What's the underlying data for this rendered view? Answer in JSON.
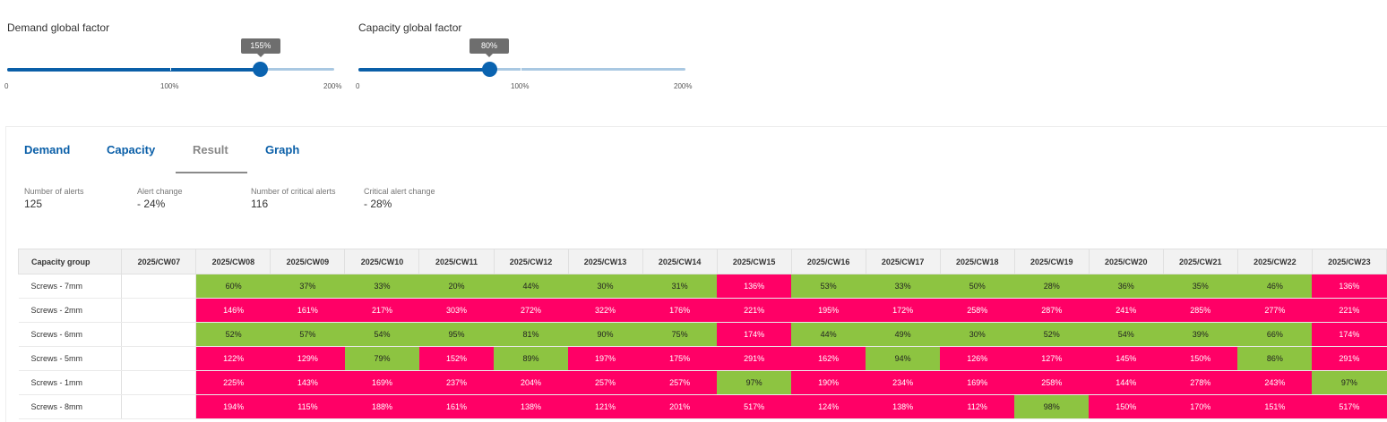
{
  "sliders": {
    "demand": {
      "label": "Demand global factor",
      "value": 155,
      "value_text": "155%",
      "min_label": "0",
      "mid_label": "100%",
      "max_label": "200%"
    },
    "capacity": {
      "label": "Capacity global factor",
      "value": 80,
      "value_text": "80%",
      "min_label": "0",
      "mid_label": "100%",
      "max_label": "200%"
    }
  },
  "tabs": [
    {
      "label": "Demand",
      "active": false
    },
    {
      "label": "Capacity",
      "active": false
    },
    {
      "label": "Result",
      "active": true
    },
    {
      "label": "Graph",
      "active": false
    }
  ],
  "kpis": [
    {
      "label": "Number of alerts",
      "value": "125"
    },
    {
      "label": "Alert change",
      "value": "- 24%"
    },
    {
      "label": "Number of critical alerts",
      "value": "116"
    },
    {
      "label": "Critical alert change",
      "value": "- 28%"
    }
  ],
  "colors": {
    "ok": "#8dc441",
    "critical": "#ff0066",
    "accent": "#0a5fa8"
  },
  "table": {
    "first_header": "Capacity group",
    "weeks": [
      "2025/CW07",
      "2025/CW08",
      "2025/CW09",
      "2025/CW10",
      "2025/CW11",
      "2025/CW12",
      "2025/CW13",
      "2025/CW14",
      "2025/CW15",
      "2025/CW16",
      "2025/CW17",
      "2025/CW18",
      "2025/CW19",
      "2025/CW20",
      "2025/CW21",
      "2025/CW22",
      "2025/CW23"
    ],
    "rows": [
      {
        "group": "Screws - 7mm",
        "cells": [
          "",
          "60%",
          "37%",
          "33%",
          "20%",
          "44%",
          "30%",
          "31%",
          "136%",
          "53%",
          "33%",
          "50%",
          "28%",
          "36%",
          "35%",
          "46%",
          "136%"
        ],
        "status": [
          "",
          "ok",
          "ok",
          "ok",
          "ok",
          "ok",
          "ok",
          "ok",
          "crit",
          "ok",
          "ok",
          "ok",
          "ok",
          "ok",
          "ok",
          "ok",
          "crit"
        ]
      },
      {
        "group": "Screws - 2mm",
        "cells": [
          "",
          "146%",
          "161%",
          "217%",
          "303%",
          "272%",
          "322%",
          "176%",
          "221%",
          "195%",
          "172%",
          "258%",
          "287%",
          "241%",
          "285%",
          "277%",
          "221%"
        ],
        "status": [
          "",
          "crit",
          "crit",
          "crit",
          "crit",
          "crit",
          "crit",
          "crit",
          "crit",
          "crit",
          "crit",
          "crit",
          "crit",
          "crit",
          "crit",
          "crit",
          "crit"
        ]
      },
      {
        "group": "Screws - 6mm",
        "cells": [
          "",
          "52%",
          "57%",
          "54%",
          "95%",
          "81%",
          "90%",
          "75%",
          "174%",
          "44%",
          "49%",
          "30%",
          "52%",
          "54%",
          "39%",
          "66%",
          "174%"
        ],
        "status": [
          "",
          "ok",
          "ok",
          "ok",
          "ok",
          "ok",
          "ok",
          "ok",
          "crit",
          "ok",
          "ok",
          "ok",
          "ok",
          "ok",
          "ok",
          "ok",
          "crit"
        ]
      },
      {
        "group": "Screws - 5mm",
        "cells": [
          "",
          "122%",
          "129%",
          "79%",
          "152%",
          "89%",
          "197%",
          "175%",
          "291%",
          "162%",
          "94%",
          "126%",
          "127%",
          "145%",
          "150%",
          "86%",
          "291%"
        ],
        "status": [
          "",
          "crit",
          "crit",
          "ok",
          "crit",
          "ok",
          "crit",
          "crit",
          "crit",
          "crit",
          "ok",
          "crit",
          "crit",
          "crit",
          "crit",
          "ok",
          "crit"
        ]
      },
      {
        "group": "Screws - 1mm",
        "cells": [
          "",
          "225%",
          "143%",
          "169%",
          "237%",
          "204%",
          "257%",
          "257%",
          "97%",
          "190%",
          "234%",
          "169%",
          "258%",
          "144%",
          "278%",
          "243%",
          "97%"
        ],
        "status": [
          "",
          "crit",
          "crit",
          "crit",
          "crit",
          "crit",
          "crit",
          "crit",
          "ok",
          "crit",
          "crit",
          "crit",
          "crit",
          "crit",
          "crit",
          "crit",
          "ok"
        ]
      },
      {
        "group": "Screws - 8mm",
        "cells": [
          "",
          "194%",
          "115%",
          "188%",
          "161%",
          "138%",
          "121%",
          "201%",
          "517%",
          "124%",
          "138%",
          "112%",
          "98%",
          "150%",
          "170%",
          "151%",
          "517%"
        ],
        "status": [
          "",
          "crit",
          "crit",
          "crit",
          "crit",
          "crit",
          "crit",
          "crit",
          "crit",
          "crit",
          "crit",
          "crit",
          "ok",
          "crit",
          "crit",
          "crit",
          "crit"
        ]
      }
    ]
  }
}
